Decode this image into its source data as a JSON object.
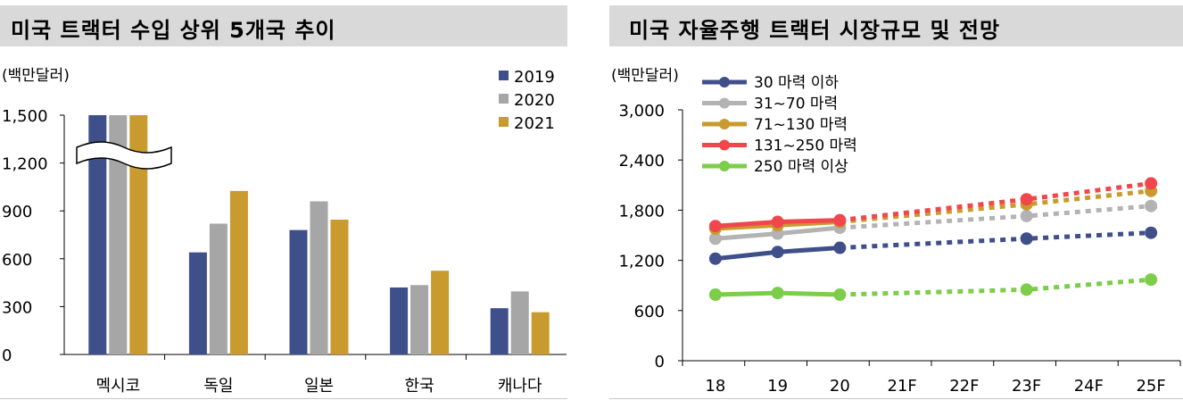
{
  "chart_data": [
    {
      "type": "bar",
      "title": "미국 트랙터 수입 상위 5개국 추이",
      "unit": "(백만달러)",
      "categories": [
        "멕시코",
        "독일",
        "일본",
        "한국",
        "캐나다"
      ],
      "series": [
        {
          "name": "2019",
          "color": "#3f4f8a",
          "values": [
            1500,
            640,
            780,
            420,
            290
          ]
        },
        {
          "name": "2020",
          "color": "#a6a6a6",
          "values": [
            1500,
            820,
            960,
            435,
            395
          ]
        },
        {
          "name": "2021",
          "color": "#c99a2e",
          "values": [
            1500,
            1025,
            845,
            525,
            265
          ]
        }
      ],
      "yticks": [
        "0",
        "300",
        "600",
        "900",
        "1,200",
        "1,500"
      ],
      "ylim": [
        0,
        1500
      ],
      "axis_break": true,
      "legend_position": "top-right"
    },
    {
      "type": "line",
      "title": "미국 자율주행 트랙터 시장규모 및 전망",
      "unit": "(백만달러)",
      "categories": [
        "18",
        "19",
        "20",
        "21F",
        "22F",
        "23F",
        "24F",
        "25F"
      ],
      "yticks": [
        "0",
        "600",
        "1,200",
        "1,800",
        "2,400",
        "3,000"
      ],
      "ylim": [
        0,
        3000
      ],
      "legend_position": "top-left",
      "series": [
        {
          "name": "30 마력 이하",
          "color": "#3f4f8a",
          "actual": [
            [
              0,
              1220
            ],
            [
              1,
              1300
            ],
            [
              2,
              1350
            ]
          ],
          "forecast": [
            [
              2,
              1350
            ],
            [
              5,
              1460
            ],
            [
              7,
              1530
            ]
          ]
        },
        {
          "name": "31~70 마력",
          "color": "#b3b3b3",
          "actual": [
            [
              0,
              1460
            ],
            [
              1,
              1520
            ],
            [
              2,
              1590
            ]
          ],
          "forecast": [
            [
              2,
              1590
            ],
            [
              5,
              1730
            ],
            [
              7,
              1850
            ]
          ]
        },
        {
          "name": "71~130 마력",
          "color": "#c99a2e",
          "actual": [
            [
              0,
              1580
            ],
            [
              1,
              1620
            ],
            [
              2,
              1660
            ]
          ],
          "forecast": [
            [
              2,
              1660
            ],
            [
              5,
              1870
            ],
            [
              7,
              2030
            ]
          ]
        },
        {
          "name": "131~250 마력",
          "color": "#f0474d",
          "actual": [
            [
              0,
              1610
            ],
            [
              1,
              1660
            ],
            [
              2,
              1680
            ]
          ],
          "forecast": [
            [
              2,
              1680
            ],
            [
              5,
              1930
            ],
            [
              7,
              2120
            ]
          ]
        },
        {
          "name": "250 마력 이상",
          "color": "#7ccd4a",
          "actual": [
            [
              0,
              790
            ],
            [
              1,
              810
            ],
            [
              2,
              790
            ]
          ],
          "forecast": [
            [
              2,
              790
            ],
            [
              5,
              850
            ],
            [
              7,
              970
            ]
          ]
        }
      ]
    }
  ]
}
